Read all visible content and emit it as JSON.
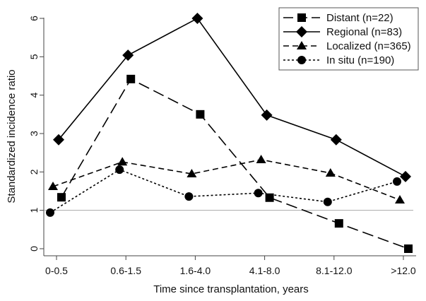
{
  "chart_data": {
    "type": "line",
    "title": "",
    "xlabel": "Time since transplantation, years",
    "ylabel": "Standardized incidence ratio",
    "categories": [
      "0-0.5",
      "0.6-1.5",
      "1.6-4.0",
      "4.1-8.0",
      "8.1-12.0",
      ">12.0"
    ],
    "yticks": [
      0,
      1,
      2,
      3,
      4,
      5,
      6
    ],
    "ylim": [
      0,
      6
    ],
    "reference_line": 1,
    "grid": false,
    "legend_position": "top-right",
    "series": [
      {
        "name": "Distant (n=22)",
        "marker": "square",
        "dash": "long-dash",
        "values": [
          1.34,
          4.42,
          3.5,
          1.33,
          0.66,
          0.0
        ]
      },
      {
        "name": "Regional (n=83)",
        "marker": "diamond",
        "dash": "solid",
        "values": [
          2.84,
          5.04,
          6.0,
          3.48,
          2.84,
          1.88
        ]
      },
      {
        "name": "Localized (n=365)",
        "marker": "triangle",
        "dash": "short-dash",
        "values": [
          1.62,
          2.26,
          1.95,
          2.32,
          1.97,
          1.27
        ]
      },
      {
        "name": "In situ (n=190)",
        "marker": "circle",
        "dash": "dotted",
        "values": [
          0.94,
          2.06,
          1.36,
          1.45,
          1.22,
          1.75
        ]
      }
    ]
  }
}
